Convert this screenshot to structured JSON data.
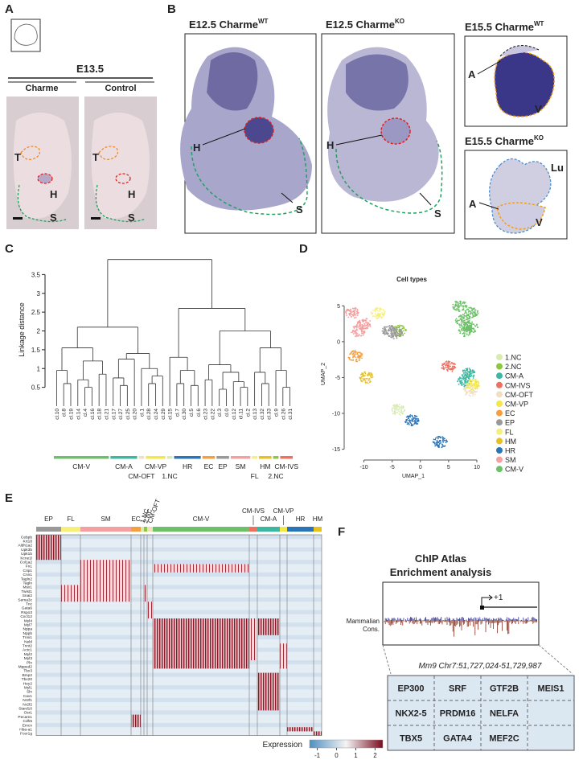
{
  "panel_labels": [
    "A",
    "B",
    "C",
    "D",
    "E",
    "F"
  ],
  "panel_a": {
    "stage": "E13.5",
    "columns": [
      "Charme",
      "Control"
    ],
    "labels": [
      "T",
      "H",
      "S"
    ]
  },
  "panel_b": {
    "images": [
      {
        "title": "E12.5 Charme",
        "superscript": "WT",
        "labels": [
          "H",
          "S"
        ]
      },
      {
        "title": "E12.5 Charme",
        "superscript": "KO",
        "labels": [
          "H",
          "S"
        ]
      },
      {
        "title": "E15.5 Charme",
        "superscript": "WT",
        "labels": [
          "A",
          "V"
        ]
      },
      {
        "title": "E15.5 Charme",
        "superscript": "KO",
        "labels": [
          "Lu",
          "A",
          "V"
        ]
      }
    ]
  },
  "chart_data": [
    {
      "type": "dendrogram",
      "y_label": "Linkage distance",
      "ylim": [
        0,
        4
      ],
      "yticks": [
        0.5,
        1,
        1.5,
        2,
        2.5,
        3,
        3.5
      ],
      "tree": {
        "h": 3.9,
        "c": [
          {
            "h": 2.1,
            "c": [
              {
                "h": 1.55,
                "c": [
                  {
                    "h": 0.95,
                    "c": [
                      "cl.10",
                      {
                        "h": 0.6,
                        "c": [
                          "cl.8",
                          "cl.19"
                        ]
                      }
                    ]
                  },
                  {
                    "h": 1.2,
                    "c": [
                      {
                        "h": 0.7,
                        "c": [
                          "cl.14",
                          {
                            "h": 0.5,
                            "c": [
                              "cl.4",
                              "cl.16"
                            ]
                          }
                        ]
                      },
                      {
                        "h": 0.85,
                        "c": [
                          "cl.18",
                          "cl.21"
                        ]
                      }
                    ]
                  }
                ]
              },
              {
                "h": 1.4,
                "c": [
                  {
                    "h": 1.25,
                    "c": [
                      {
                        "h": 0.75,
                        "c": [
                          "cl.17",
                          {
                            "h": 0.55,
                            "c": [
                              "cl.27",
                              "cl.25"
                            ]
                          }
                        ]
                      },
                      "cl.20"
                    ]
                  },
                  {
                    "h": 1.0,
                    "c": [
                      "cl.1",
                      {
                        "h": 0.8,
                        "c": [
                          {
                            "h": 0.6,
                            "c": [
                              "cl.28",
                              "cl.24"
                            ]
                          },
                          "cl.29"
                        ]
                      }
                    ]
                  }
                ]
              }
            ]
          },
          {
            "h": 2.6,
            "c": [
              {
                "h": 1.3,
                "c": [
                  "cl.15",
                  {
                    "h": 0.95,
                    "c": [
                      {
                        "h": 0.6,
                        "c": [
                          "cl.7",
                          "cl.30"
                        ]
                      },
                      {
                        "h": 0.55,
                        "c": [
                          "cl.5",
                          "cl.6"
                        ]
                      }
                    ]
                  }
                ]
              },
              {
                "h": 2.0,
                "c": [
                  {
                    "h": 1.1,
                    "c": [
                      {
                        "h": 0.7,
                        "c": [
                          "cl.23",
                          "cl.22"
                        ]
                      },
                      {
                        "h": 0.9,
                        "c": [
                          {
                            "h": 0.45,
                            "c": [
                              "cl.3",
                              "cl.0"
                            ]
                          },
                          {
                            "h": 0.65,
                            "c": [
                              "cl.12",
                              {
                                "h": 0.5,
                                "c": [
                                  "cl.11",
                                  "cl.2"
                                ]
                              }
                            ]
                          }
                        ]
                      }
                    ]
                  },
                  {
                    "h": 1.55,
                    "c": [
                      {
                        "h": 0.9,
                        "c": [
                          "cl.13",
                          {
                            "h": 0.6,
                            "c": [
                              "cl.32",
                              "cl.33"
                            ]
                          }
                        ]
                      },
                      {
                        "h": 0.95,
                        "c": [
                          "cl.9",
                          {
                            "h": 0.5,
                            "c": [
                              "cl.26",
                              "cl.31"
                            ]
                          }
                        ]
                      }
                    ]
                  }
                ]
              }
            ]
          }
        ]
      },
      "groups": [
        {
          "name": "CM-V",
          "color": "#6cc068",
          "count": 8
        },
        {
          "name": "CM-A",
          "color": "#3cb8a0",
          "count": 4
        },
        {
          "name": "CM-OFT",
          "color": "#f1dfc0",
          "count": 1
        },
        {
          "name": "CM-VP",
          "color": "#f2e84a",
          "count": 3
        },
        {
          "name": "1.NC",
          "color": "#d8ecb0",
          "count": 1
        },
        {
          "name": "HR",
          "color": "#2a74b8",
          "count": 4
        },
        {
          "name": "EC",
          "color": "#f4a040",
          "count": 2
        },
        {
          "name": "EP",
          "color": "#999999",
          "count": 2
        },
        {
          "name": "SM",
          "color": "#f4a0a0",
          "count": 3
        },
        {
          "name": "FL",
          "color": "#f6f07a",
          "count": 1
        },
        {
          "name": "HM",
          "color": "#e8c020",
          "count": 2
        },
        {
          "name": "2.NC",
          "color": "#8dc63f",
          "count": 1
        },
        {
          "name": "CM-IVS",
          "color": "#f07060",
          "count": 2
        }
      ]
    },
    {
      "type": "scatter",
      "title": "Cell types",
      "x_label": "UMAP_1",
      "y_label": "UMAP_2",
      "xlim": [
        -13.5,
        11
      ],
      "ylim": [
        -16.5,
        7.5
      ],
      "xticks": [
        -10,
        -5,
        0,
        5,
        10
      ],
      "yticks": [
        -15,
        -10,
        -5,
        0,
        5
      ],
      "series": [
        {
          "name": "1.NC",
          "color": "#d8ecb0",
          "x": [
            -4
          ],
          "y": [
            -9.5
          ]
        },
        {
          "name": "2.NC",
          "color": "#8dc63f",
          "x": [
            -3.8
          ],
          "y": [
            1.5
          ]
        },
        {
          "name": "CM-A",
          "color": "#3cb8a0",
          "x": [
            8.5,
            7.8
          ],
          "y": [
            -4.5,
            -5.5
          ]
        },
        {
          "name": "CM-IVS",
          "color": "#f07060",
          "x": [
            5
          ],
          "y": [
            -3.5
          ]
        },
        {
          "name": "CM-OFT",
          "color": "#f1dfc0",
          "x": [
            8.8
          ],
          "y": [
            -6.8
          ]
        },
        {
          "name": "CM-VP",
          "color": "#f2e84a",
          "x": [
            9.3
          ],
          "y": [
            -6
          ]
        },
        {
          "name": "EC",
          "color": "#f4a040",
          "x": [
            -11.5
          ],
          "y": [
            -2
          ]
        },
        {
          "name": "EP",
          "color": "#999999",
          "x": [
            -5.5,
            -4.5
          ],
          "y": [
            1.5,
            1.2
          ]
        },
        {
          "name": "FL",
          "color": "#f6f07a",
          "x": [
            -7.5
          ],
          "y": [
            4
          ]
        },
        {
          "name": "HM",
          "color": "#e8c020",
          "x": [
            -9.5
          ],
          "y": [
            -5
          ]
        },
        {
          "name": "HR",
          "color": "#2a74b8",
          "x": [
            -1.5,
            3.5
          ],
          "y": [
            -11,
            -14
          ]
        },
        {
          "name": "SM",
          "color": "#f4a0a0",
          "x": [
            -12,
            -10,
            -11
          ],
          "y": [
            4,
            2.5,
            1.5
          ]
        },
        {
          "name": "CM-V",
          "color": "#6cc068",
          "x": [
            7,
            9,
            8,
            7.5,
            9
          ],
          "y": [
            5,
            4,
            1.5,
            3,
            2
          ]
        }
      ]
    },
    {
      "type": "heatmap",
      "colorbar_label": "Expression",
      "clim": [
        -1.4,
        2.4
      ],
      "cticks": [
        -1,
        0,
        1,
        2
      ],
      "colors": [
        "#4f8fc0",
        "#f4f4f4",
        "#7a0c1e"
      ],
      "groups": [
        {
          "name": "EP",
          "color": "#999999"
        },
        {
          "name": "FL",
          "color": "#f6f07a"
        },
        {
          "name": "SM",
          "color": "#f4a0a0"
        },
        {
          "name": "EC",
          "color": "#f4a040"
        },
        {
          "name": "1.NC",
          "color": "#d8ecb0"
        },
        {
          "name": "2.NC",
          "color": "#8dc63f"
        },
        {
          "name": "CM-OFT",
          "color": "#f1dfc0"
        },
        {
          "name": "CM-V",
          "color": "#6cc068"
        },
        {
          "name": "CM-IVS",
          "color": "#f07060"
        },
        {
          "name": "CM-A",
          "color": "#3cb8a0"
        },
        {
          "name": "CM-VP",
          "color": "#f2e84a"
        },
        {
          "name": "HR",
          "color": "#2a74b8"
        },
        {
          "name": "HM",
          "color": "#e8c020"
        }
      ],
      "genes": [
        "Cebpb",
        "Krt18",
        "Aldh1a2",
        "Upk3b",
        "Upk1b",
        "Kcne1l",
        "Col1a2",
        "Fn1",
        "Crip1",
        "Cnn1",
        "Tagln2",
        "Tagln",
        "Msx1",
        "Twist1",
        "Snai2",
        "Sema3c",
        "Tnc",
        "Gata6",
        "Rspo3",
        "Cxcl12",
        "Myl4",
        "Myl7",
        "Nppa",
        "Nppb",
        "Tnni1",
        "Nebl",
        "Tnnt2",
        "Actc1",
        "Myl2",
        "Myl3",
        "Pln",
        "Mpped2",
        "Tbx3",
        "Bmp2",
        "Tbx20",
        "Hey2",
        "Myl1",
        "Sln",
        "Cav1",
        "Nr2f1",
        "Nr2f2",
        "Stard10",
        "Osr1",
        "Pecam1",
        "Cdh5",
        "Emcn",
        "Hba-a1",
        "Fcer1g"
      ],
      "gene_colors": [
        "#c8102e",
        "#333",
        "#333",
        "#333",
        "#333",
        "#333",
        "#c8102e",
        "#c8102e",
        "#c8102e",
        "#c8102e",
        "#c8102e",
        "#c8102e",
        "#c8102e",
        "#c8102e",
        "#c8102e",
        "#c8102e",
        "#333",
        "#333",
        "#333",
        "#333",
        "#c8102e",
        "#333",
        "#c8102e",
        "#333",
        "#333",
        "#333",
        "#c8102e",
        "#c8102e",
        "#c8102e",
        "#c8102e",
        "#333",
        "#333",
        "#333",
        "#c8102e",
        "#c8102e",
        "#333",
        "#c8102e",
        "#333",
        "#333",
        "#333",
        "#333",
        "#333",
        "#333",
        "#c8102e",
        "#c8102e",
        "#333",
        "#c8102e",
        "#333"
      ]
    }
  ],
  "panel_f": {
    "title": "ChIP Atlas",
    "subtitle": "Enrichment analysis",
    "tss": "+1",
    "track": [
      "Mammalian",
      "Cons."
    ],
    "coordinates": "Mm9 Chr7:51,727,024-51,729,987",
    "table": [
      [
        "EP300",
        "SRF",
        "GTF2B",
        "MEIS1"
      ],
      [
        "NKX2-5",
        "PRDM16",
        "NELFA"
      ],
      [
        "TBX5",
        "GATA4",
        "MEF2C"
      ]
    ],
    "text_colors": [
      [
        "#333",
        "#333",
        "#333",
        "#333"
      ],
      [
        "#333",
        "#333",
        "#333"
      ],
      [
        "#d42020",
        "#333",
        "#333"
      ]
    ]
  }
}
